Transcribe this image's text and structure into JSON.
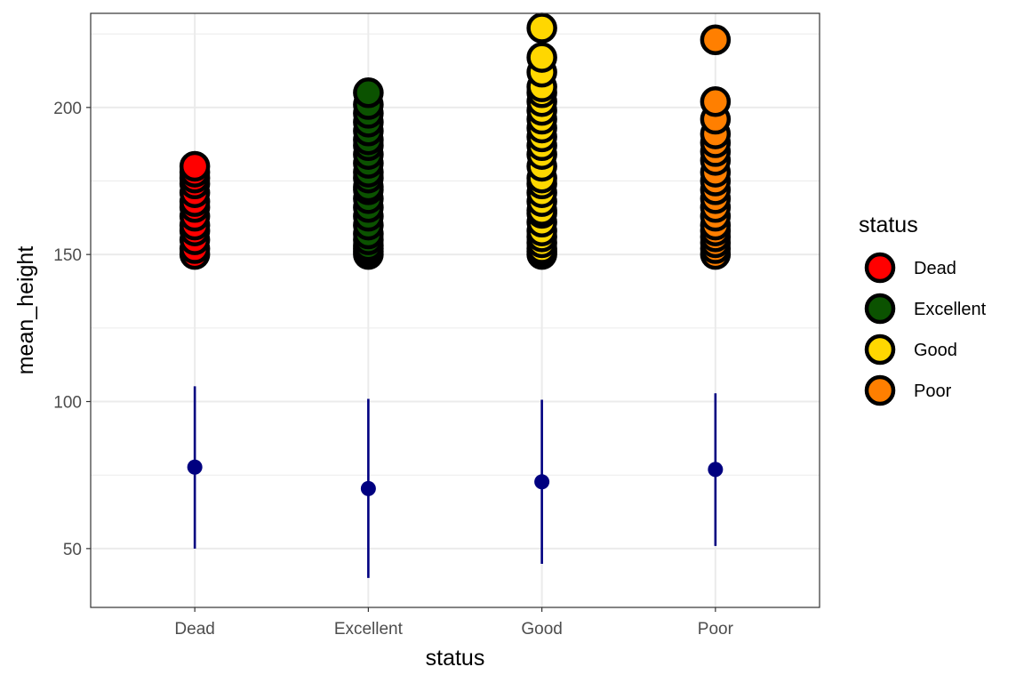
{
  "chart_data": {
    "type": "scatter",
    "xlabel": "status",
    "ylabel": "mean_height",
    "categories": [
      "Dead",
      "Excellent",
      "Good",
      "Poor"
    ],
    "ylim": [
      30,
      232
    ],
    "y_ticks": [
      50,
      100,
      150,
      200
    ],
    "grid": true,
    "legend": {
      "title": "status",
      "placement": "right",
      "entries": [
        {
          "label": "Dead",
          "color": "#FF0000"
        },
        {
          "label": "Excellent",
          "color": "#0B5200"
        },
        {
          "label": "Good",
          "color": "#FFD700"
        },
        {
          "label": "Poor",
          "color": "#FF7F00"
        }
      ]
    },
    "series": [
      {
        "category": "Dead",
        "color": "#FF0000",
        "values": [
          150,
          152,
          155,
          158,
          160,
          163,
          166,
          168,
          171,
          174,
          176,
          178,
          180
        ]
      },
      {
        "category": "Excellent",
        "color": "#0B5200",
        "values": [
          150,
          151,
          152,
          153,
          155,
          157,
          160,
          163,
          166,
          169,
          172,
          173,
          176,
          178,
          181,
          184,
          187,
          189,
          192,
          195,
          198,
          201,
          205
        ]
      },
      {
        "category": "Good",
        "color": "#FFD700",
        "values": [
          150,
          151,
          152,
          154,
          156,
          158,
          161,
          164,
          165,
          168,
          171,
          174,
          176,
          180,
          184,
          187,
          190,
          193,
          196,
          199,
          202,
          205,
          207,
          212,
          217,
          227
        ]
      },
      {
        "category": "Poor",
        "color": "#FF7F00",
        "values": [
          150,
          152,
          154,
          156,
          158,
          160,
          163,
          166,
          169,
          172,
          175,
          178,
          182,
          185,
          188,
          191,
          196,
          202,
          223
        ]
      }
    ],
    "summary": {
      "color": "#000080",
      "points": [
        {
          "category": "Dead",
          "mean": 77.7,
          "low": 50,
          "high": 105.2
        },
        {
          "category": "Excellent",
          "mean": 70.4,
          "low": 40,
          "high": 100.9
        },
        {
          "category": "Good",
          "mean": 72.7,
          "low": 44.8,
          "high": 100.6
        },
        {
          "category": "Poor",
          "mean": 76.9,
          "low": 50.9,
          "high": 102.8
        }
      ]
    }
  }
}
